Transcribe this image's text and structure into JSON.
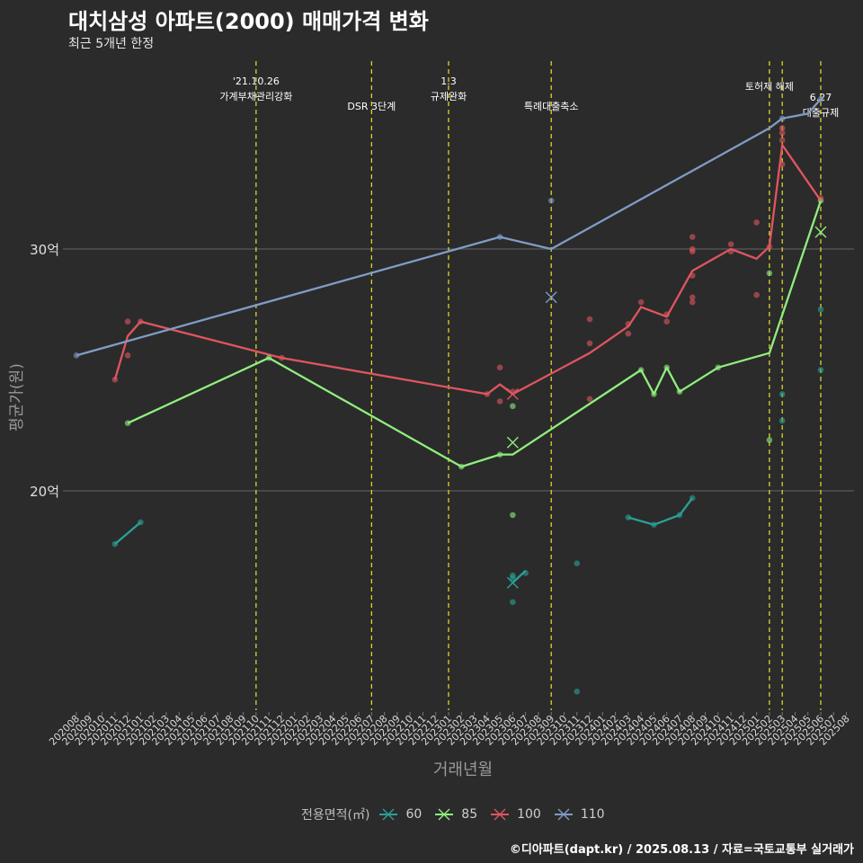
{
  "title": "대치삼성 아파트(2000) 매매가격 변화",
  "subtitle": "최근 5개년 한정",
  "caption": "©디아파트(dapt.kr) / 2025.08.13 / 자료=국토교통부 실거래가",
  "legend": {
    "title": "전용면적(㎡)"
  },
  "chart_data": {
    "type": "line",
    "xlabel": "거래년월",
    "ylabel": "평균가(원)",
    "y_unit": "억",
    "ylim": [
      10.8,
      37.5
    ],
    "yticks": [
      20,
      30
    ],
    "ytick_labels": [
      "20억",
      "30억"
    ],
    "x_start": "202008",
    "x_end": "202508",
    "x_ticks": [
      "202008",
      "202009",
      "202010",
      "202011",
      "202012",
      "202101",
      "202102",
      "202103",
      "202104",
      "202105",
      "202106",
      "202107",
      "202108",
      "202109",
      "202110",
      "202111",
      "202112",
      "202201",
      "202202",
      "202203",
      "202204",
      "202205",
      "202206",
      "202207",
      "202208",
      "202209",
      "202210",
      "202211",
      "202212",
      "202301",
      "202302",
      "202303",
      "202304",
      "202305",
      "202306",
      "202307",
      "202308",
      "202309",
      "202310",
      "202311",
      "202312",
      "202401",
      "202402",
      "202403",
      "202404",
      "202405",
      "202406",
      "202407",
      "202408",
      "202409",
      "202410",
      "202411",
      "202412",
      "202501",
      "202502",
      "202503",
      "202504",
      "202505",
      "202506",
      "202507",
      "202508"
    ],
    "grid": "major y only",
    "legend_position": "bottom",
    "events": [
      {
        "x": "202110",
        "label_lines": [
          "'21.10.26",
          "가계부채관리강화"
        ]
      },
      {
        "x": "202207",
        "label_lines": [
          "DSR 3단계"
        ]
      },
      {
        "x": "202301",
        "label_lines": [
          "1.3",
          "규제완화"
        ]
      },
      {
        "x": "202309",
        "label_lines": [
          "특례대출축소"
        ]
      },
      {
        "x": "202502",
        "label_lines": [
          "토허제 해제"
        ]
      },
      {
        "x": "202503",
        "label_lines": []
      },
      {
        "x": "202506",
        "label_lines": [
          "6.27",
          "대출규제"
        ]
      }
    ],
    "series": [
      {
        "name": "60",
        "color": "#2aa198",
        "line_segments": [
          [
            [
              "202011",
              17.8
            ],
            [
              "202101",
              18.7
            ]
          ],
          [
            [
              "202306",
              16.2
            ],
            [
              "202307",
              16.7
            ]
          ],
          [
            [
              "202403",
              18.9
            ],
            [
              "202405",
              18.6
            ],
            [
              "202407",
              19.0
            ],
            [
              "202408",
              19.7
            ]
          ]
        ],
        "points": [
          [
            "202011",
            17.8
          ],
          [
            "202101",
            18.7
          ],
          [
            "202306",
            16.4
          ],
          [
            "202306",
            15.4
          ],
          [
            "202306",
            16.5
          ],
          [
            "202307",
            16.6
          ],
          [
            "202311",
            17.0
          ],
          [
            "202311",
            11.7
          ],
          [
            "202403",
            18.9
          ],
          [
            "202405",
            18.6
          ],
          [
            "202407",
            19.0
          ],
          [
            "202408",
            19.7
          ],
          [
            "202503",
            24.0
          ],
          [
            "202503",
            22.9
          ],
          [
            "202506",
            25.0
          ],
          [
            "202506",
            27.5
          ]
        ],
        "markers_x": [
          [
            "202306",
            16.2
          ]
        ]
      },
      {
        "name": "85",
        "color": "#90ee7e",
        "line": [
          [
            "202012",
            22.8
          ],
          [
            "202111",
            25.5
          ],
          [
            "202302",
            21.0
          ],
          [
            "202305",
            21.5
          ],
          [
            "202306",
            21.5
          ],
          [
            "202404",
            25.0
          ],
          [
            "202405",
            24.0
          ],
          [
            "202406",
            25.1
          ],
          [
            "202407",
            24.1
          ],
          [
            "202410",
            25.1
          ],
          [
            "202502",
            25.7
          ],
          [
            "202506",
            32.0
          ]
        ],
        "points": [
          [
            "202012",
            22.8
          ],
          [
            "202111",
            25.5
          ],
          [
            "202302",
            21.0
          ],
          [
            "202305",
            21.5
          ],
          [
            "202306",
            23.5
          ],
          [
            "202306",
            19.0
          ],
          [
            "202404",
            25.0
          ],
          [
            "202405",
            24.0
          ],
          [
            "202406",
            25.1
          ],
          [
            "202407",
            24.1
          ],
          [
            "202410",
            25.1
          ],
          [
            "202502",
            29.0
          ],
          [
            "202502",
            22.1
          ],
          [
            "202506",
            32.0
          ]
        ],
        "markers_x": [
          [
            "202306",
            22.0
          ],
          [
            "202506",
            30.7
          ]
        ]
      },
      {
        "name": "100",
        "color": "#e0555f",
        "line": [
          [
            "202011",
            24.6
          ],
          [
            "202012",
            26.4
          ],
          [
            "202101",
            27.0
          ],
          [
            "202112",
            25.5
          ],
          [
            "202304",
            24.0
          ],
          [
            "202305",
            24.4
          ],
          [
            "202306",
            24.0
          ],
          [
            "202312",
            25.7
          ],
          [
            "202403",
            26.8
          ],
          [
            "202404",
            27.6
          ],
          [
            "202406",
            27.2
          ],
          [
            "202408",
            29.1
          ],
          [
            "202411",
            30.0
          ],
          [
            "202501",
            29.6
          ],
          [
            "202502",
            30.1
          ],
          [
            "202503",
            34.3
          ],
          [
            "202506",
            32.0
          ]
        ],
        "points": [
          [
            "202011",
            24.6
          ],
          [
            "202012",
            27.0
          ],
          [
            "202012",
            25.6
          ],
          [
            "202101",
            27.0
          ],
          [
            "202112",
            25.5
          ],
          [
            "202304",
            24.0
          ],
          [
            "202305",
            25.1
          ],
          [
            "202305",
            23.7
          ],
          [
            "202306",
            24.1
          ],
          [
            "202312",
            27.1
          ],
          [
            "202312",
            26.1
          ],
          [
            "202312",
            23.8
          ],
          [
            "202403",
            26.9
          ],
          [
            "202403",
            26.5
          ],
          [
            "202404",
            27.8
          ],
          [
            "202406",
            27.3
          ],
          [
            "202406",
            27.0
          ],
          [
            "202408",
            30.5
          ],
          [
            "202408",
            30.0
          ],
          [
            "202408",
            29.9
          ],
          [
            "202408",
            28.0
          ],
          [
            "202408",
            27.8
          ],
          [
            "202408",
            28.9
          ],
          [
            "202411",
            30.2
          ],
          [
            "202411",
            29.9
          ],
          [
            "202501",
            31.1
          ],
          [
            "202501",
            28.1
          ],
          [
            "202502",
            30.1
          ],
          [
            "202503",
            35.0
          ],
          [
            "202503",
            34.8
          ],
          [
            "202503",
            34.5
          ],
          [
            "202503",
            33.5
          ],
          [
            "202506",
            32.1
          ]
        ],
        "markers_x": [
          [
            "202306",
            24.0
          ]
        ]
      },
      {
        "name": "110",
        "color": "#7f9cc6",
        "line": [
          [
            "202008",
            25.6
          ],
          [
            "202305",
            30.5
          ],
          [
            "202309",
            30.0
          ],
          [
            "202502",
            35.0
          ],
          [
            "202503",
            35.4
          ],
          [
            "202505",
            35.6
          ],
          [
            "202506",
            36.2
          ]
        ],
        "points": [
          [
            "202008",
            25.6
          ],
          [
            "202305",
            30.5
          ],
          [
            "202309",
            32.0
          ],
          [
            "202503",
            35.4
          ],
          [
            "202506",
            36.2
          ]
        ],
        "markers_x": [
          [
            "202309",
            28.0
          ]
        ]
      }
    ]
  }
}
